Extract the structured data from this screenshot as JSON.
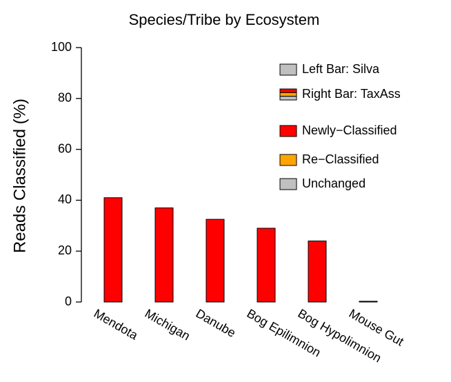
{
  "chart_data": {
    "type": "bar",
    "title": "Species/Tribe by Ecosystem",
    "y_label": "Reads Classified (%)",
    "categories": [
      "Mendota",
      "Michigan",
      "Danube",
      "Bog Epilimnion",
      "Bog Hypolimnion",
      "Mouse Gut"
    ],
    "left_bar": {
      "name": "Left Bar: Silva",
      "color": "#c0c0c0",
      "values": [
        0,
        0,
        0,
        0,
        0,
        0
      ]
    },
    "right_bar_name": "Right Bar: TaxAss",
    "series": [
      {
        "name": "Newly−Classified",
        "color": "#ff0000",
        "values": [
          41,
          37,
          32.5,
          29,
          24,
          0.3
        ]
      },
      {
        "name": "Re−Classified",
        "color": "#ffa500",
        "values": [
          0,
          0,
          0,
          0,
          0,
          0
        ]
      },
      {
        "name": "Unchanged",
        "color": "#c0c0c0",
        "values": [
          0,
          0,
          0,
          0,
          0,
          0
        ]
      }
    ],
    "ylim": [
      0,
      100
    ],
    "yticks": [
      0,
      20,
      40,
      60,
      80,
      100
    ]
  }
}
